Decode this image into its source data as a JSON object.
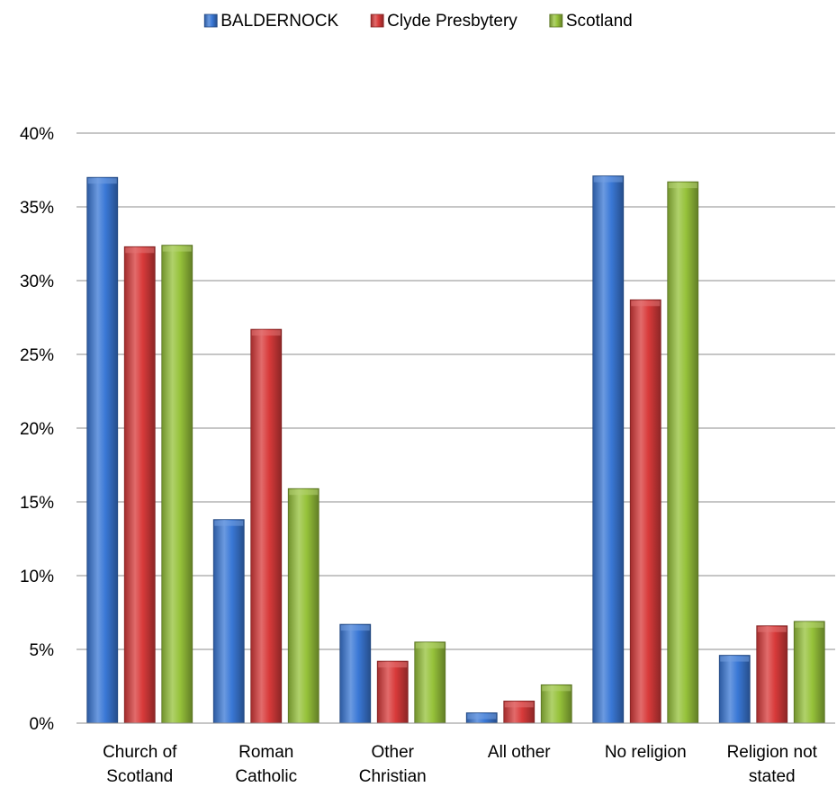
{
  "chart_data": {
    "type": "bar",
    "categories": [
      [
        "Church of",
        "Scotland"
      ],
      [
        "Roman",
        "Catholic"
      ],
      [
        "Other",
        "Christian"
      ],
      [
        "All other"
      ],
      [
        "No religion"
      ],
      [
        "Religion not",
        "stated"
      ]
    ],
    "series": [
      {
        "name": "BALDERNOCK",
        "color": "#3a78d6",
        "values": [
          37.0,
          13.8,
          6.7,
          0.7,
          37.1,
          4.6
        ]
      },
      {
        "name": "Clyde Presbytery",
        "color": "#d83a3a",
        "values": [
          32.3,
          26.7,
          4.2,
          1.5,
          28.7,
          6.6
        ]
      },
      {
        "name": "Scotland",
        "color": "#96c23a",
        "values": [
          32.4,
          15.9,
          5.5,
          2.6,
          36.7,
          6.9
        ]
      }
    ],
    "ylim": [
      0,
      40
    ],
    "yticks": [
      "0%",
      "5%",
      "10%",
      "15%",
      "20%",
      "25%",
      "30%",
      "35%",
      "40%"
    ],
    "ytick_values": [
      0,
      5,
      10,
      15,
      20,
      25,
      30,
      35,
      40
    ],
    "grid": true,
    "legend_position": "top-center"
  }
}
